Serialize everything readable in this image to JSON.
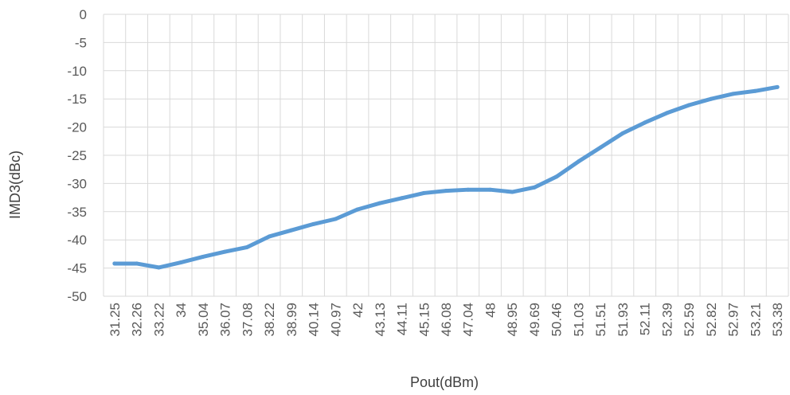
{
  "chart_data": {
    "type": "line",
    "title": "",
    "xlabel": "Pout(dBm)",
    "ylabel": "IMD3(dBc)",
    "ylim": [
      -50,
      0
    ],
    "y_ticks": [
      "0",
      "-5",
      "-10",
      "-15",
      "-20",
      "-25",
      "-30",
      "-35",
      "-40",
      "-45",
      "-50"
    ],
    "categories": [
      "31.25",
      "32.26",
      "33.22",
      "34",
      "35.04",
      "36.07",
      "37.08",
      "38.22",
      "38.99",
      "40.14",
      "40.97",
      "42",
      "43.13",
      "44.11",
      "45.15",
      "46.08",
      "47.04",
      "48",
      "48.95",
      "49.69",
      "50.46",
      "51.03",
      "51.51",
      "51.93",
      "52.11",
      "52.39",
      "52.59",
      "52.82",
      "52.97",
      "53.21",
      "53.38"
    ],
    "grid": true,
    "legend": "none",
    "series": [
      {
        "color": "#5b9bd5",
        "values": [
          -44.2,
          -44.2,
          -44.9,
          -44.0,
          -43.0,
          -42.1,
          -41.3,
          -39.4,
          -38.3,
          -37.2,
          -36.3,
          -34.6,
          -33.5,
          -32.6,
          -31.7,
          -31.3,
          -31.1,
          -31.1,
          -31.5,
          -30.7,
          -28.8,
          -26.1,
          -23.6,
          -21.1,
          -19.2,
          -17.5,
          -16.1,
          -15.0,
          -14.1,
          -13.6,
          -12.9
        ]
      }
    ]
  }
}
